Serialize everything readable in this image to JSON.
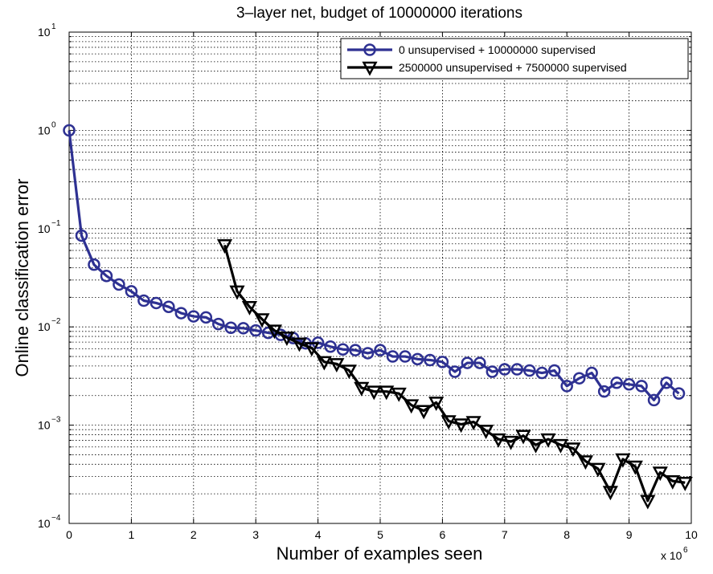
{
  "chart_data": {
    "type": "line",
    "title": "3–layer net, budget of 10000000 iterations",
    "xlabel": "Number of examples seen",
    "ylabel": "Online classification error",
    "x_multiplier_label": "x 10",
    "x_multiplier_exponent": "6",
    "xlim": [
      0,
      10
    ],
    "ylim": [
      0.0001,
      10
    ],
    "yscale": "log",
    "grid": true,
    "legend_position": "top-right",
    "x_ticks": [
      {
        "value": 0,
        "label": "0"
      },
      {
        "value": 1,
        "label": "1"
      },
      {
        "value": 2,
        "label": "2"
      },
      {
        "value": 3,
        "label": "3"
      },
      {
        "value": 4,
        "label": "4"
      },
      {
        "value": 5,
        "label": "5"
      },
      {
        "value": 6,
        "label": "6"
      },
      {
        "value": 7,
        "label": "7"
      },
      {
        "value": 8,
        "label": "8"
      },
      {
        "value": 9,
        "label": "9"
      },
      {
        "value": 10,
        "label": "10"
      }
    ],
    "y_ticks": [
      {
        "value": 0.0001,
        "base": "10",
        "exp": "−4"
      },
      {
        "value": 0.001,
        "base": "10",
        "exp": "−3"
      },
      {
        "value": 0.01,
        "base": "10",
        "exp": "−2"
      },
      {
        "value": 0.1,
        "base": "10",
        "exp": "−1"
      },
      {
        "value": 1,
        "base": "10",
        "exp": "0"
      },
      {
        "value": 10,
        "base": "10",
        "exp": "1"
      }
    ],
    "series": [
      {
        "name": "0 unsupervised + 10000000 supervised",
        "color": "#2e3192",
        "marker": "circle",
        "x": [
          0,
          0.2,
          0.4,
          0.6,
          0.8,
          1.0,
          1.2,
          1.4,
          1.6,
          1.8,
          2.0,
          2.2,
          2.4,
          2.6,
          2.8,
          3.0,
          3.2,
          3.4,
          3.6,
          3.8,
          4.0,
          4.2,
          4.4,
          4.6,
          4.8,
          5.0,
          5.2,
          5.4,
          5.6,
          5.8,
          6.0,
          6.2,
          6.4,
          6.6,
          6.8,
          7.0,
          7.2,
          7.4,
          7.6,
          7.8,
          8.0,
          8.2,
          8.4,
          8.6,
          8.8,
          9.0,
          9.2,
          9.4,
          9.6,
          9.8
        ],
        "values": [
          1.0,
          0.085,
          0.043,
          0.033,
          0.027,
          0.023,
          0.0185,
          0.0175,
          0.016,
          0.0138,
          0.0128,
          0.0125,
          0.0107,
          0.0098,
          0.0097,
          0.0092,
          0.0087,
          0.0083,
          0.0077,
          0.0068,
          0.0069,
          0.0063,
          0.0059,
          0.0058,
          0.0054,
          0.0058,
          0.005,
          0.005,
          0.0047,
          0.0046,
          0.0044,
          0.0035,
          0.0043,
          0.0043,
          0.0035,
          0.0037,
          0.0037,
          0.0036,
          0.0034,
          0.0036,
          0.0025,
          0.003,
          0.0034,
          0.0022,
          0.0027,
          0.0026,
          0.0025,
          0.0018,
          0.0027,
          0.0021
        ]
      },
      {
        "name": "2500000 unsupervised + 7500000 supervised",
        "color": "#000000",
        "marker": "triangle-down",
        "x": [
          2.5,
          2.7,
          2.9,
          3.1,
          3.3,
          3.5,
          3.7,
          3.9,
          4.1,
          4.3,
          4.5,
          4.7,
          4.9,
          5.1,
          5.3,
          5.5,
          5.7,
          5.9,
          6.1,
          6.3,
          6.5,
          6.7,
          6.9,
          7.1,
          7.3,
          7.5,
          7.7,
          7.9,
          8.1,
          8.3,
          8.5,
          8.7,
          8.9,
          9.1,
          9.3,
          9.5,
          9.7,
          9.9
        ],
        "values": [
          0.068,
          0.023,
          0.016,
          0.012,
          0.0092,
          0.0078,
          0.0068,
          0.0061,
          0.0044,
          0.0042,
          0.0036,
          0.0024,
          0.0022,
          0.0022,
          0.0021,
          0.0016,
          0.0014,
          0.0017,
          0.0011,
          0.00102,
          0.00108,
          0.00088,
          0.00072,
          0.00068,
          0.00078,
          0.00063,
          0.00072,
          0.00063,
          0.00058,
          0.00043,
          0.00036,
          0.00021,
          0.00045,
          0.00038,
          0.00017,
          0.00033,
          0.00027,
          0.00026
        ]
      }
    ]
  }
}
